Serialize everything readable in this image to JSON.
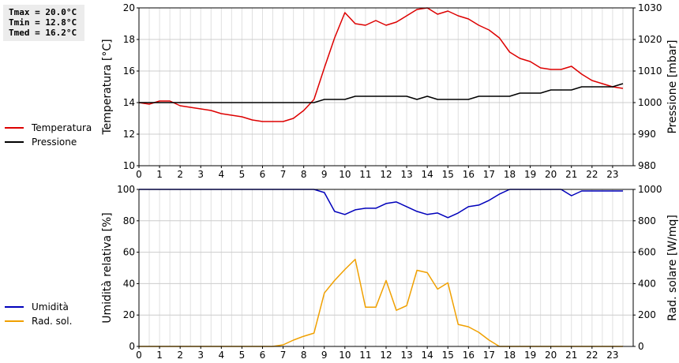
{
  "stats": {
    "tmax": "Tmax = 20.0°C",
    "tmin": "Tmin = 12.8°C",
    "tmed": "Tmed = 16.2°C"
  },
  "legend_top": [
    {
      "label": "Temperatura",
      "color": "#dd0000"
    },
    {
      "label": "Pressione",
      "color": "#000000"
    }
  ],
  "legend_bottom": [
    {
      "label": "Umidità",
      "color": "#0000bb"
    },
    {
      "label": "Rad. sol.",
      "color": "#f0a000"
    }
  ],
  "chart_data": [
    {
      "type": "line",
      "xlabel": "",
      "ylabel": "Temperatura [°C]",
      "y2label": "Pressione [mbar]",
      "xlim": [
        0,
        24
      ],
      "ylim": [
        10,
        20
      ],
      "y2lim": [
        980,
        1030
      ],
      "x_ticks": [
        "0",
        "1",
        "2",
        "3",
        "4",
        "5",
        "6",
        "7",
        "8",
        "9",
        "10",
        "11",
        "12",
        "13",
        "14",
        "15",
        "16",
        "17",
        "18",
        "19",
        "20",
        "21",
        "22",
        "23"
      ],
      "y_ticks": [
        "10",
        "12",
        "14",
        "16",
        "18",
        "20"
      ],
      "y2_ticks": [
        "980",
        "990",
        "1000",
        "1010",
        "1020",
        "1030"
      ],
      "grid": true,
      "series": [
        {
          "name": "Temperatura",
          "axis": "left",
          "color": "#dd0000",
          "x": [
            0,
            0.5,
            1,
            1.5,
            2,
            2.5,
            3,
            3.5,
            4,
            4.5,
            5,
            5.5,
            6,
            6.5,
            7,
            7.5,
            8,
            8.5,
            9,
            9.5,
            10,
            10.5,
            11,
            11.5,
            12,
            12.5,
            13,
            13.5,
            14,
            14.5,
            15,
            15.5,
            16,
            16.5,
            17,
            17.5,
            18,
            18.5,
            19,
            19.5,
            20,
            20.5,
            21,
            21.5,
            22,
            22.5,
            23,
            23.5
          ],
          "y": [
            14.0,
            13.9,
            14.1,
            14.1,
            13.8,
            13.7,
            13.6,
            13.5,
            13.3,
            13.2,
            13.1,
            12.9,
            12.8,
            12.8,
            12.8,
            13.0,
            13.5,
            14.2,
            16.2,
            18.1,
            19.7,
            19.0,
            18.9,
            19.2,
            18.9,
            19.1,
            19.5,
            19.9,
            20.0,
            19.6,
            19.8,
            19.5,
            19.3,
            18.9,
            18.6,
            18.1,
            17.2,
            16.8,
            16.6,
            16.2,
            16.1,
            16.1,
            16.3,
            15.8,
            15.4,
            15.2,
            15.0,
            14.9
          ]
        },
        {
          "name": "Pressione",
          "axis": "right",
          "color": "#000000",
          "x": [
            0,
            0.5,
            1,
            1.5,
            2,
            2.5,
            3,
            3.5,
            4,
            4.5,
            5,
            5.5,
            6,
            6.5,
            7,
            7.5,
            8,
            8.5,
            9,
            9.5,
            10,
            10.5,
            11,
            11.5,
            12,
            12.5,
            13,
            13.5,
            14,
            14.5,
            15,
            15.5,
            16,
            16.5,
            17,
            17.5,
            18,
            18.5,
            19,
            19.5,
            20,
            20.5,
            21,
            21.5,
            22,
            22.5,
            23,
            23.5
          ],
          "y": [
            1000,
            1000,
            1000,
            1000,
            1000,
            1000,
            1000,
            1000,
            1000,
            1000,
            1000,
            1000,
            1000,
            1000,
            1000,
            1000,
            1000,
            1000,
            1001,
            1001,
            1001,
            1002,
            1002,
            1002,
            1002,
            1002,
            1002,
            1001,
            1002,
            1001,
            1001,
            1001,
            1001,
            1002,
            1002,
            1002,
            1002,
            1003,
            1003,
            1003,
            1004,
            1004,
            1004,
            1005,
            1005,
            1005,
            1005,
            1006
          ]
        }
      ]
    },
    {
      "type": "line",
      "xlabel": "",
      "ylabel": "Umidità relativa [%]",
      "y2label": "Rad. solare [W/mq]",
      "xlim": [
        0,
        24
      ],
      "ylim": [
        0,
        100
      ],
      "y2lim": [
        0,
        1000
      ],
      "x_ticks": [
        "0",
        "1",
        "2",
        "3",
        "4",
        "5",
        "6",
        "7",
        "8",
        "9",
        "10",
        "11",
        "12",
        "13",
        "14",
        "15",
        "16",
        "17",
        "18",
        "19",
        "20",
        "21",
        "22",
        "23"
      ],
      "y_ticks": [
        "0",
        "20",
        "40",
        "60",
        "80",
        "100"
      ],
      "y2_ticks": [
        "0",
        "200",
        "400",
        "600",
        "800",
        "1000"
      ],
      "grid": true,
      "series": [
        {
          "name": "Umidità",
          "axis": "left",
          "color": "#0000bb",
          "x": [
            0,
            0.5,
            1,
            1.5,
            2,
            2.5,
            3,
            3.5,
            4,
            4.5,
            5,
            5.5,
            6,
            6.5,
            7,
            7.5,
            8,
            8.5,
            9,
            9.5,
            10,
            10.5,
            11,
            11.5,
            12,
            12.5,
            13,
            13.5,
            14,
            14.5,
            15,
            15.5,
            16,
            16.5,
            17,
            17.5,
            18,
            18.5,
            19,
            19.5,
            20,
            20.5,
            21,
            21.5,
            22,
            22.5,
            23,
            23.5
          ],
          "y": [
            100,
            100,
            100,
            100,
            100,
            100,
            100,
            100,
            100,
            100,
            100,
            100,
            100,
            100,
            100,
            100,
            100,
            100,
            98,
            86,
            84,
            87,
            88,
            88,
            91,
            92,
            89,
            86,
            84,
            85,
            82,
            85,
            89,
            90,
            93,
            97,
            100,
            100,
            100,
            100,
            100,
            100,
            96,
            99,
            99,
            99,
            99,
            99
          ]
        },
        {
          "name": "Rad. sol.",
          "axis": "right",
          "color": "#f0a000",
          "x": [
            0,
            0.5,
            1,
            1.5,
            2,
            2.5,
            3,
            3.5,
            4,
            4.5,
            5,
            5.5,
            6,
            6.5,
            7,
            7.5,
            8,
            8.5,
            9,
            9.5,
            10,
            10.5,
            11,
            11.5,
            12,
            12.5,
            13,
            13.5,
            14,
            14.5,
            15,
            15.5,
            16,
            16.5,
            17,
            17.5,
            18,
            18.5,
            19,
            19.5,
            20,
            20.5,
            21,
            21.5,
            22,
            22.5,
            23,
            23.5
          ],
          "y": [
            0,
            0,
            0,
            0,
            0,
            0,
            0,
            0,
            0,
            0,
            0,
            0,
            0,
            0,
            10,
            40,
            65,
            85,
            340,
            420,
            490,
            555,
            250,
            250,
            420,
            230,
            260,
            485,
            470,
            365,
            405,
            140,
            125,
            90,
            40,
            0,
            0,
            0,
            0,
            0,
            0,
            0,
            0,
            0,
            0,
            0,
            0,
            0
          ]
        }
      ]
    }
  ]
}
